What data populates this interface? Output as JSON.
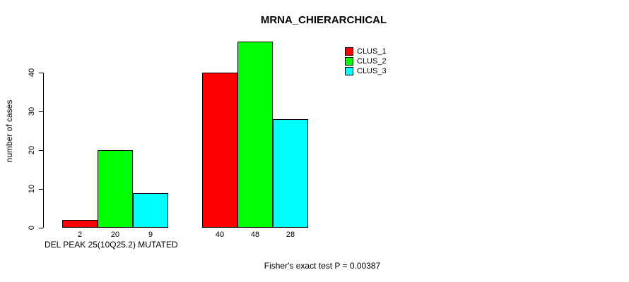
{
  "chart_data": {
    "type": "bar",
    "title": "MRNA_CHIERARCHICAL",
    "ylabel": "number of cases",
    "xlabel": "DEL PEAK 25(10Q25.2) MUTATED",
    "xlabel_position": "below-first-group",
    "categories": [
      "DEL PEAK 25(10Q25.2) MUTATED",
      ""
    ],
    "series": [
      {
        "name": "CLUS_1",
        "color": "#FF0000",
        "values": [
          2,
          40
        ]
      },
      {
        "name": "CLUS_2",
        "color": "#00FF00",
        "values": [
          20,
          48
        ]
      },
      {
        "name": "CLUS_3",
        "color": "#00FFFF",
        "values": [
          9,
          28
        ]
      }
    ],
    "bar_value_labels": [
      [
        "2",
        "20",
        "9"
      ],
      [
        "40",
        "48",
        "28"
      ]
    ],
    "y_ticks": [
      0,
      10,
      20,
      30,
      40
    ],
    "ylim": [
      0,
      48
    ],
    "grid": false,
    "legend_position": "top-right",
    "annotations": [
      "Fisher's exact test P = 0.00387"
    ]
  },
  "colors": {
    "background": "#FFFFFF",
    "axis": "#000000",
    "bar_border": "#000000",
    "text": "#000000"
  }
}
